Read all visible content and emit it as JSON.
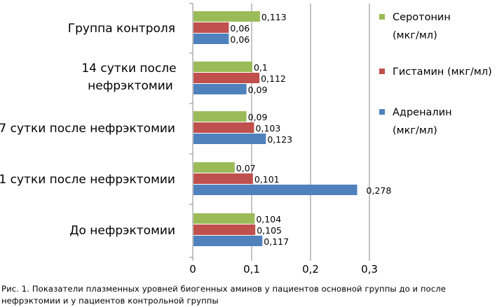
{
  "chart_data": {
    "type": "bar",
    "orientation": "horizontal",
    "categories": [
      "Группа контроля",
      "14 сутки после нефрэктомии",
      "7 сутки после нефрэктомии",
      "1 сутки после нефрэктомии",
      "До нефрэктомии"
    ],
    "series": [
      {
        "name": "Серотонин (мкг/мл)",
        "color": "#9BBB59",
        "values": [
          0.113,
          0.1,
          0.09,
          0.07,
          0.104
        ],
        "labels": [
          "0,113",
          "0,1",
          "0,09",
          "0,07",
          "0,104"
        ]
      },
      {
        "name": "Гистамин (мкг/мл)",
        "color": "#C0504D",
        "values": [
          0.06,
          0.112,
          0.103,
          0.101,
          0.105
        ],
        "labels": [
          "0,06",
          "0,112",
          "0,103",
          "0,101",
          "0,105"
        ]
      },
      {
        "name": "Адреналин (мкг/мл)",
        "color": "#4F81BD",
        "values": [
          0.06,
          0.09,
          0.123,
          0.278,
          0.117
        ],
        "labels": [
          "0,06",
          "0,09",
          "0,123",
          "0,278",
          "0,117"
        ]
      }
    ],
    "xlim": [
      0,
      0.3
    ],
    "xticks": [
      "0",
      "0,1",
      "0,2",
      "0,3"
    ],
    "grid": true,
    "legend_placement": "right"
  },
  "caption": "Рис. 1. Показатели плазменных уровней биогенных аминов у пациентов основной группы до и после нефрэктомии и у пациентов контрольной группы"
}
